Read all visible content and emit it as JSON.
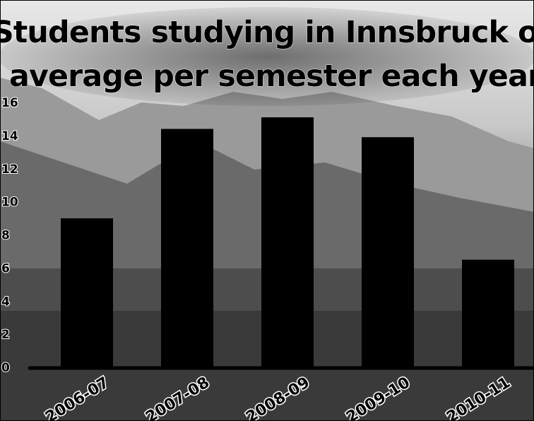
{
  "chart_data": {
    "type": "bar",
    "title": [
      "Students studying in Innsbruck on",
      "average per semester each year"
    ],
    "categories": [
      "2006-07",
      "2007-08",
      "2008-09",
      "2009-10",
      "2010-11"
    ],
    "values": [
      9.0,
      14.4,
      15.1,
      13.9,
      6.5
    ],
    "color": "#000000",
    "ylim": [
      0,
      16
    ],
    "yticks": [
      0,
      2,
      4,
      6,
      8,
      10,
      12,
      14,
      16
    ],
    "grid": false
  }
}
